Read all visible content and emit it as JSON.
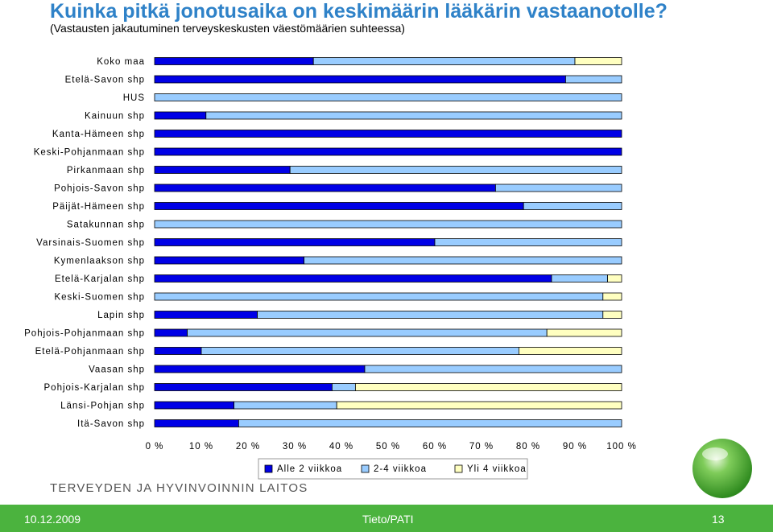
{
  "header": {
    "title": "Kuinka pitkä jonotusaika on keskimäärin lääkärin vastaanotolle?",
    "subtitle": "(Vastausten jakautuminen terveyskeskusten väestömäärien suhteessa)"
  },
  "chart_data": {
    "type": "bar",
    "orientation": "horizontal",
    "stacked": true,
    "percent_scale": true,
    "categories": [
      "Koko maa",
      "Etelä-Savon shp",
      "HUS",
      "Kainuun shp",
      "Kanta-Hämeen shp",
      "Keski-Pohjanmaan shp",
      "Pirkanmaan shp",
      "Pohjois-Savon shp",
      "Päijät-Hämeen shp",
      "Satakunnan shp",
      "Varsinais-Suomen shp",
      "Kymenlaakson shp",
      "Etelä-Karjalan shp",
      "Keski-Suomen shp",
      "Lapin shp",
      "Pohjois-Pohjanmaan shp",
      "Etelä-Pohjanmaan shp",
      "Vaasan shp",
      "Pohjois-Karjalan shp",
      "Länsi-Pohjan shp",
      "Itä-Savon shp"
    ],
    "series": [
      {
        "name": "Alle 2 viikkoa",
        "color": "#0000e6",
        "values": [
          34,
          88,
          0,
          11,
          100,
          100,
          29,
          73,
          79,
          0,
          60,
          32,
          85,
          0,
          22,
          7,
          10,
          45,
          38,
          17,
          18
        ]
      },
      {
        "name": "2-4 viikkoa",
        "color": "#99ccff",
        "values": [
          56,
          12,
          100,
          89,
          0,
          0,
          71,
          27,
          21,
          100,
          40,
          68,
          12,
          96,
          74,
          77,
          68,
          55,
          5,
          22,
          82
        ]
      },
      {
        "name": "Yli 4 viikkoa",
        "color": "#ffffc0",
        "values": [
          10,
          0,
          0,
          0,
          0,
          0,
          0,
          0,
          0,
          0,
          0,
          0,
          3,
          4,
          4,
          16,
          22,
          0,
          57,
          61,
          0
        ]
      }
    ],
    "xlim": [
      0,
      100
    ],
    "x_ticks": [
      "0 %",
      "10 %",
      "20 %",
      "30 %",
      "40 %",
      "50 %",
      "60 %",
      "70 %",
      "80 %",
      "90 %",
      "100 %"
    ],
    "grid": false,
    "legend_position": "bottom"
  },
  "branding": {
    "organization": "TERVEYDEN JA HYVINVOINNIN LAITOS"
  },
  "footer": {
    "date": "10.12.2009",
    "center": "Tieto/PATI",
    "page": "13"
  }
}
